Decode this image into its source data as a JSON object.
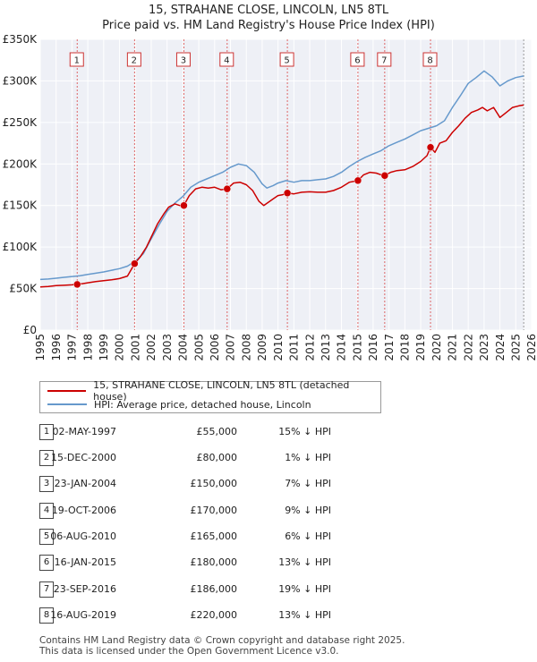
{
  "chart_data": {
    "type": "line",
    "title": "15, STRAHANE CLOSE, LINCOLN, LN5 8TL",
    "subtitle": "Price paid vs. HM Land Registry's House Price Index (HPI)",
    "xlabel": "",
    "ylabel": "",
    "xlim": [
      1995,
      2026
    ],
    "ylim": [
      0,
      350000
    ],
    "y_ticks": [
      {
        "value": 0,
        "label": "£0"
      },
      {
        "value": 50000,
        "label": "£50K"
      },
      {
        "value": 100000,
        "label": "£100K"
      },
      {
        "value": 150000,
        "label": "£150K"
      },
      {
        "value": 200000,
        "label": "£200K"
      },
      {
        "value": 250000,
        "label": "£250K"
      },
      {
        "value": 300000,
        "label": "£300K"
      },
      {
        "value": 350000,
        "label": "£350K"
      }
    ],
    "x_ticks": [
      "1995",
      "1996",
      "1997",
      "1998",
      "1999",
      "2000",
      "2001",
      "2002",
      "2003",
      "2004",
      "2005",
      "2006",
      "2007",
      "2008",
      "2009",
      "2010",
      "2011",
      "2012",
      "2013",
      "2014",
      "2015",
      "2016",
      "2017",
      "2018",
      "2019",
      "2020",
      "2021",
      "2022",
      "2023",
      "2024",
      "2025",
      "2026"
    ],
    "series": [
      {
        "name": "15, STRAHANE CLOSE, LINCOLN, LN5 8TL (detached house)",
        "color": "#cc0000",
        "x": [
          1995.0,
          1995.5,
          1996.0,
          1996.5,
          1997.0,
          1997.33,
          1997.7,
          1998.0,
          1998.5,
          1999.0,
          1999.5,
          2000.0,
          2000.5,
          2000.95,
          2001.3,
          2001.7,
          2002.0,
          2002.4,
          2002.8,
          2003.1,
          2003.5,
          2003.8,
          2004.06,
          2004.4,
          2004.8,
          2005.2,
          2005.6,
          2006.0,
          2006.4,
          2006.79,
          2007.2,
          2007.6,
          2008.0,
          2008.4,
          2008.8,
          2009.1,
          2009.4,
          2009.7,
          2010.0,
          2010.3,
          2010.6,
          2011.0,
          2011.5,
          2012.0,
          2012.5,
          2013.0,
          2013.5,
          2014.0,
          2014.5,
          2015.04,
          2015.4,
          2015.8,
          2016.2,
          2016.5,
          2016.73,
          2017.1,
          2017.5,
          2018.0,
          2018.5,
          2019.0,
          2019.4,
          2019.62,
          2019.9,
          2020.2,
          2020.6,
          2021.0,
          2021.4,
          2021.8,
          2022.2,
          2022.6,
          2022.9,
          2023.2,
          2023.6,
          2024.0,
          2024.4,
          2024.8,
          2025.2,
          2025.5
        ],
        "y": [
          52000,
          52500,
          53500,
          54000,
          54500,
          55000,
          56000,
          57000,
          58500,
          59500,
          60500,
          62000,
          65000,
          80000,
          88000,
          100000,
          112000,
          128000,
          140000,
          148000,
          152000,
          150000,
          150000,
          162000,
          170000,
          172000,
          171000,
          172000,
          169000,
          170000,
          177000,
          178000,
          175000,
          168000,
          155000,
          150000,
          154000,
          158000,
          162000,
          163000,
          165000,
          164000,
          166000,
          166500,
          166000,
          166000,
          168000,
          172000,
          178000,
          180000,
          187000,
          190000,
          189000,
          187000,
          186000,
          190000,
          192000,
          193000,
          197000,
          203000,
          210000,
          220000,
          214000,
          225000,
          228000,
          238000,
          246000,
          255000,
          262000,
          265000,
          268000,
          264000,
          268000,
          256000,
          262000,
          268000,
          270000,
          271000
        ]
      },
      {
        "name": "HPI: Average price, detached house, Lincoln",
        "color": "#6699cc",
        "x": [
          1995.0,
          1995.5,
          1996.0,
          1996.5,
          1997.0,
          1997.5,
          1998.0,
          1998.5,
          1999.0,
          1999.5,
          2000.0,
          2000.5,
          2001.0,
          2001.5,
          2002.0,
          2002.5,
          2003.0,
          2003.5,
          2004.0,
          2004.5,
          2005.0,
          2005.5,
          2006.0,
          2006.5,
          2007.0,
          2007.5,
          2008.0,
          2008.5,
          2009.0,
          2009.3,
          2009.7,
          2010.0,
          2010.5,
          2011.0,
          2011.5,
          2012.0,
          2012.5,
          2013.0,
          2013.5,
          2014.0,
          2014.5,
          2015.0,
          2015.5,
          2016.0,
          2016.5,
          2017.0,
          2017.5,
          2018.0,
          2018.5,
          2019.0,
          2019.5,
          2020.0,
          2020.5,
          2021.0,
          2021.5,
          2022.0,
          2022.5,
          2023.0,
          2023.5,
          2024.0,
          2024.5,
          2025.0,
          2025.5
        ],
        "y": [
          61000,
          61500,
          62500,
          63500,
          64500,
          65500,
          67000,
          68500,
          70000,
          72000,
          74000,
          77000,
          83000,
          92000,
          110000,
          127000,
          143000,
          153000,
          161000,
          172000,
          178000,
          182000,
          186000,
          190000,
          196000,
          200000,
          198000,
          190000,
          176000,
          171000,
          174000,
          177000,
          180000,
          178000,
          180000,
          180000,
          181000,
          182000,
          185000,
          190000,
          197000,
          203000,
          208000,
          212000,
          216000,
          222000,
          226000,
          230000,
          235000,
          240000,
          243000,
          246000,
          252000,
          268000,
          282000,
          297000,
          304000,
          312000,
          305000,
          294000,
          300000,
          304000,
          306000
        ]
      }
    ],
    "sales": [
      {
        "label": "1",
        "x": 1997.33,
        "y": 55000
      },
      {
        "label": "2",
        "x": 2000.95,
        "y": 80000
      },
      {
        "label": "3",
        "x": 2004.06,
        "y": 150000
      },
      {
        "label": "4",
        "x": 2006.79,
        "y": 170000
      },
      {
        "label": "5",
        "x": 2010.59,
        "y": 165000
      },
      {
        "label": "6",
        "x": 2015.04,
        "y": 180000
      },
      {
        "label": "7",
        "x": 2016.73,
        "y": 186000
      },
      {
        "label": "8",
        "x": 2019.62,
        "y": 220000
      }
    ],
    "grid": true,
    "legend_position": "bottom"
  },
  "legend": {
    "property_label": "15, STRAHANE CLOSE, LINCOLN, LN5 8TL (detached house)",
    "hpi_label": "HPI: Average price, detached house, Lincoln"
  },
  "table": [
    {
      "num": "1",
      "date": "02-MAY-1997",
      "price": "£55,000",
      "pct": "15% ↓ HPI"
    },
    {
      "num": "2",
      "date": "15-DEC-2000",
      "price": "£80,000",
      "pct": "1% ↓ HPI"
    },
    {
      "num": "3",
      "date": "23-JAN-2004",
      "price": "£150,000",
      "pct": "7% ↓ HPI"
    },
    {
      "num": "4",
      "date": "19-OCT-2006",
      "price": "£170,000",
      "pct": "9% ↓ HPI"
    },
    {
      "num": "5",
      "date": "06-AUG-2010",
      "price": "£165,000",
      "pct": "6% ↓ HPI"
    },
    {
      "num": "6",
      "date": "16-JAN-2015",
      "price": "£180,000",
      "pct": "13% ↓ HPI"
    },
    {
      "num": "7",
      "date": "23-SEP-2016",
      "price": "£186,000",
      "pct": "19% ↓ HPI"
    },
    {
      "num": "8",
      "date": "16-AUG-2019",
      "price": "£220,000",
      "pct": "13% ↓ HPI"
    }
  ],
  "footer": {
    "line1": "Contains HM Land Registry data © Crown copyright and database right 2025.",
    "line2": "This data is licensed under the Open Government Licence v3.0."
  }
}
